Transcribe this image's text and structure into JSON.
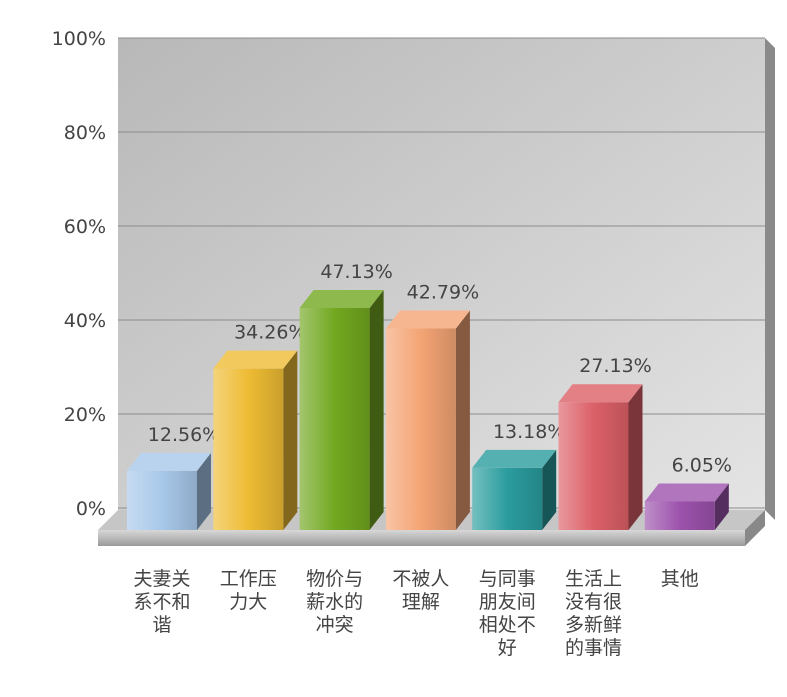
{
  "chart_data": {
    "type": "bar3d",
    "categories": [
      "夫妻关系不和谐",
      "工作压力大",
      "物价与薪水的冲突",
      "不被人理解",
      "与同事朋友间相处不好",
      "生活上没有很多新鲜的事情",
      "其他"
    ],
    "values": [
      12.56,
      34.26,
      47.13,
      42.79,
      13.18,
      27.13,
      6.05
    ],
    "value_labels": [
      "12.56%",
      "34.26%",
      "47.13%",
      "42.79%",
      "13.18%",
      "27.13%",
      "6.05%"
    ],
    "colors": [
      "#a8c8ea",
      "#eebc34",
      "#72a820",
      "#f4a474",
      "#2a9c9e",
      "#dc6068",
      "#9c52ac"
    ],
    "ylim": [
      0,
      100
    ],
    "yticks": [
      {
        "value": 0,
        "label": "0%"
      },
      {
        "value": 20,
        "label": "20%"
      },
      {
        "value": 40,
        "label": "40%"
      },
      {
        "value": 60,
        "label": "60%"
      },
      {
        "value": 80,
        "label": "80%"
      },
      {
        "value": 100,
        "label": "100%"
      }
    ],
    "grid": true
  }
}
